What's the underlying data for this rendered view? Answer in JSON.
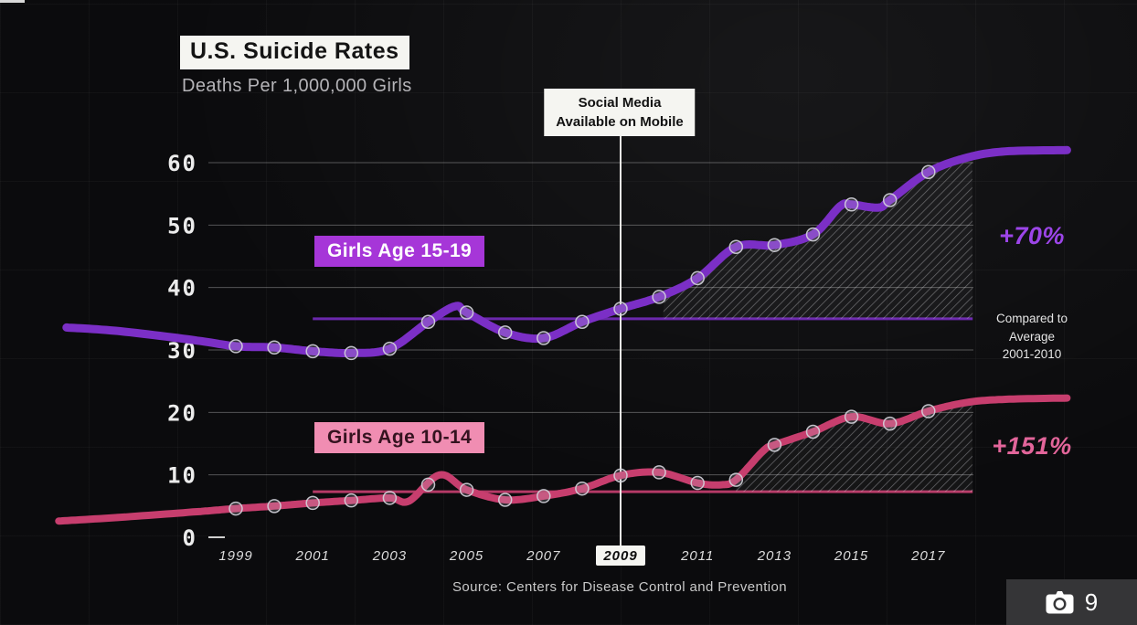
{
  "header": {
    "title": "U.S. Suicide Rates",
    "subtitle": "Deaths Per 1,000,000 Girls"
  },
  "annotation": {
    "line1": "Social Media",
    "line2": "Available on Mobile"
  },
  "series_labels": {
    "teens": "Girls Age 15-19",
    "tweens": "Girls Age 10-14"
  },
  "callouts": {
    "teens_change": "+70%",
    "tweens_change": "+151%",
    "comparison": [
      "Compared to",
      "Average",
      "2001-2010"
    ]
  },
  "source": "Source: Centers for Disease Control and Prevention",
  "badge": {
    "count": "9",
    "icon": "camera-icon"
  },
  "colors": {
    "background": "#0b0b0d",
    "teens_line": "#7b2fc6",
    "teens_label_bg": "#a636d8",
    "teens_callout": "#9c45e8",
    "teens_baseline": "#6b28ad",
    "tweens_line": "#c73e6e",
    "tweens_label_bg": "#f08db2",
    "tweens_callout": "#e2659a",
    "tweens_baseline": "#b53a66",
    "annotation_box": "#f5f5f1",
    "grid": "rgba(255,255,255,0.30)"
  },
  "chart_data": {
    "type": "line",
    "title": "U.S. Suicide Rates",
    "subtitle": "Deaths Per 1,000,000 Girls",
    "xlabel": "",
    "ylabel": "Deaths Per 1,000,000 Girls",
    "x_ticks": [
      1999,
      2001,
      2003,
      2005,
      2007,
      2009,
      2011,
      2013,
      2015,
      2017
    ],
    "highlighted_x_tick": 2009,
    "y_ticks": [
      0,
      10,
      20,
      30,
      40,
      50,
      60
    ],
    "ylim": [
      0,
      64
    ],
    "grid": "horizontal",
    "legend_position": "on-chart-labels",
    "vline": {
      "x": 2009,
      "label": "Social Media Available on Mobile"
    },
    "series": [
      {
        "name": "Girls Age 15-19",
        "color_key": "teens",
        "stroke_width": 9,
        "change_label": "+70%",
        "comparison_note": "Compared to Average 2001-2010",
        "baseline_avg": 35,
        "baseline_span": [
          2001,
          2018.15
        ],
        "hatch_span": [
          2010.1,
          2018.15
        ],
        "marker_years": [
          1999,
          2000,
          2001,
          2002,
          2003,
          2004,
          2005,
          2006,
          2007,
          2008,
          2009,
          2010,
          2011,
          2012,
          2013,
          2014,
          2015,
          2016,
          2017
        ],
        "points": [
          [
            1994.6,
            33.6
          ],
          [
            1996,
            33.0
          ],
          [
            1998,
            31.5
          ],
          [
            1999,
            30.6
          ],
          [
            2000,
            30.4
          ],
          [
            2001,
            29.8
          ],
          [
            2002,
            29.5
          ],
          [
            2003,
            30.2
          ],
          [
            2004,
            34.5
          ],
          [
            2004.7,
            37.0
          ],
          [
            2005,
            36.0
          ],
          [
            2006,
            32.8
          ],
          [
            2007,
            31.9
          ],
          [
            2008,
            34.5
          ],
          [
            2009,
            36.6
          ],
          [
            2010,
            38.5
          ],
          [
            2011,
            41.5
          ],
          [
            2012,
            46.5
          ],
          [
            2013,
            46.8
          ],
          [
            2014,
            48.5
          ],
          [
            2014.7,
            53.0
          ],
          [
            2015,
            53.3
          ],
          [
            2015.7,
            52.8
          ],
          [
            2016,
            54.0
          ],
          [
            2017,
            58.5
          ],
          [
            2018,
            60.8
          ],
          [
            2019,
            61.8
          ],
          [
            2020.6,
            62.0
          ]
        ]
      },
      {
        "name": "Girls Age 10-14",
        "color_key": "tweens",
        "stroke_width": 8,
        "change_label": "+151%",
        "comparison_note": "Compared to Average 2001-2010",
        "baseline_avg": 7.3,
        "baseline_span": [
          2001,
          2018.15
        ],
        "hatch_span": [
          2012.0,
          2018.15
        ],
        "marker_years": [
          1999,
          2000,
          2001,
          2002,
          2003,
          2004,
          2005,
          2006,
          2007,
          2008,
          2009,
          2010,
          2011,
          2012,
          2013,
          2014,
          2015,
          2016,
          2017
        ],
        "points": [
          [
            1994.4,
            2.6
          ],
          [
            1996,
            3.2
          ],
          [
            1998,
            4.1
          ],
          [
            1999,
            4.6
          ],
          [
            2000,
            5.0
          ],
          [
            2001,
            5.5
          ],
          [
            2002,
            5.9
          ],
          [
            2003,
            6.3
          ],
          [
            2003.5,
            5.8
          ],
          [
            2004.3,
            10.0
          ],
          [
            2005,
            7.6
          ],
          [
            2006,
            6.0
          ],
          [
            2007,
            6.6
          ],
          [
            2008,
            7.8
          ],
          [
            2009,
            9.9
          ],
          [
            2010,
            10.4
          ],
          [
            2011,
            8.7
          ],
          [
            2011.6,
            8.4
          ],
          [
            2012,
            9.2
          ],
          [
            2012.7,
            13.8
          ],
          [
            2013,
            14.8
          ],
          [
            2014,
            16.9
          ],
          [
            2015,
            19.3
          ],
          [
            2016,
            18.2
          ],
          [
            2017,
            20.2
          ],
          [
            2018,
            21.6
          ],
          [
            2019,
            22.1
          ],
          [
            2020.6,
            22.3
          ]
        ]
      }
    ]
  }
}
